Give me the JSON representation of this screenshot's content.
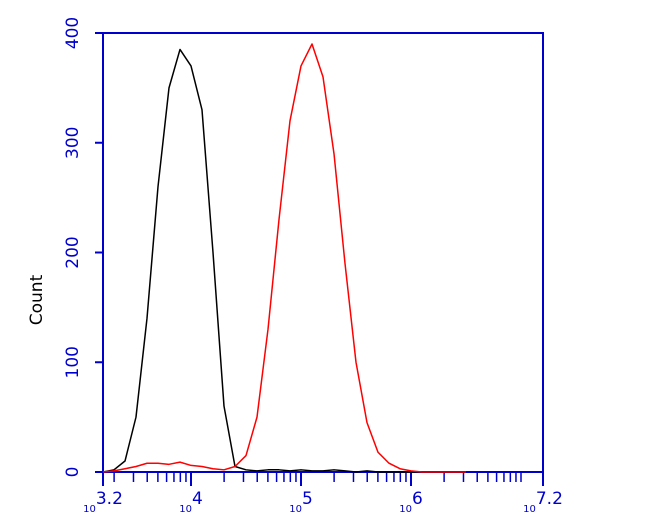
{
  "chart_data": {
    "type": "line",
    "y_label": "Count",
    "xscale": "log",
    "xlim": [
      1585,
      15848932
    ],
    "ylim": [
      0,
      400
    ],
    "yticks": [
      0,
      100,
      200,
      300,
      400
    ],
    "xticks": [
      {
        "value": 1585,
        "label": "10",
        "exponent": "3.2"
      },
      {
        "value": 10000,
        "label": "10",
        "exponent": "4"
      },
      {
        "value": 100000,
        "label": "10",
        "exponent": "5"
      },
      {
        "value": 1000000,
        "label": "10",
        "exponent": "6"
      },
      {
        "value": 15848932,
        "label": "10",
        "exponent": "7.2"
      }
    ],
    "xminorticks": [
      2000,
      3000,
      4000,
      5000,
      6000,
      7000,
      8000,
      9000,
      20000,
      30000,
      40000,
      50000,
      60000,
      70000,
      80000,
      90000,
      200000,
      300000,
      400000,
      500000,
      600000,
      700000,
      800000,
      900000,
      2000000,
      3000000,
      4000000,
      5000000,
      6000000,
      7000000,
      8000000,
      9000000,
      10000000
    ],
    "axis_color": "#0000cc",
    "x": [
      1585,
      1995,
      2512,
      3162,
      3981,
      5012,
      6310,
      7943,
      10000,
      12589,
      15849,
      19953,
      25119,
      31623,
      39811,
      50119,
      63096,
      79433,
      100000,
      125893,
      158489,
      199526,
      251189,
      316228,
      398107,
      501187,
      630957,
      794328,
      1000000,
      1258925,
      1584893,
      1995262,
      2511886,
      3162278
    ],
    "series": [
      {
        "color": "#000000",
        "values": [
          0,
          2,
          10,
          50,
          140,
          260,
          350,
          385,
          370,
          330,
          200,
          60,
          5,
          2,
          1,
          2,
          2,
          1,
          2,
          1,
          1,
          2,
          1,
          0,
          1,
          0,
          0,
          0,
          0,
          0,
          0,
          0,
          0,
          0
        ]
      },
      {
        "color": "#ff0000",
        "values": [
          0,
          1,
          3,
          5,
          8,
          8,
          7,
          9,
          6,
          5,
          3,
          2,
          5,
          15,
          50,
          130,
          230,
          320,
          370,
          390,
          360,
          290,
          190,
          100,
          45,
          18,
          8,
          3,
          1,
          0,
          0,
          0,
          0,
          0
        ]
      }
    ]
  }
}
